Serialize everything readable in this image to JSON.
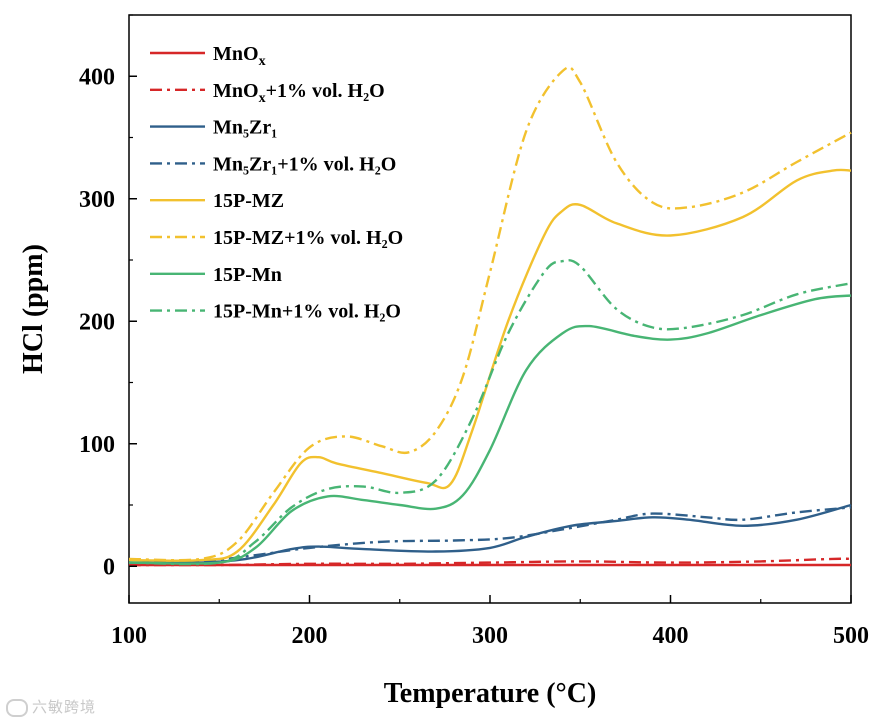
{
  "chart_data": {
    "type": "line",
    "title": "",
    "xlabel": "Temperature (°C)",
    "ylabel": "HCl (ppm)",
    "xlim": [
      100,
      500
    ],
    "ylim": [
      -30,
      450
    ],
    "xticks": [
      100,
      200,
      300,
      400,
      500
    ],
    "yticks": [
      0,
      100,
      200,
      300,
      400
    ],
    "grid": false,
    "legend_position": "top-left",
    "series": [
      {
        "name": "MnOx",
        "label_main": "MnO",
        "label_sub": "x",
        "label_rest": "",
        "color": "#d62728",
        "dash": "solid",
        "x": [
          100,
          200,
          300,
          400,
          500
        ],
        "y": [
          1,
          1,
          1,
          1,
          1
        ]
      },
      {
        "name": "MnOx+1% vol. H2O",
        "label_main": "MnO",
        "label_sub": "x",
        "label_rest": "+1% vol. H₂O",
        "color": "#d62728",
        "dash": "dashdot",
        "x": [
          100,
          150,
          200,
          250,
          300,
          350,
          400,
          450,
          490,
          500
        ],
        "y": [
          1,
          1,
          2,
          2,
          3,
          4,
          3,
          4,
          6,
          6
        ]
      },
      {
        "name": "Mn5Zr1",
        "label_main": "Mn₅Zr₁",
        "label_sub": "",
        "label_rest": "",
        "color": "#2f5f8a",
        "dash": "solid",
        "x": [
          100,
          140,
          165,
          190,
          205,
          230,
          270,
          300,
          320,
          345,
          370,
          390,
          410,
          440,
          470,
          500
        ],
        "y": [
          3,
          3,
          6,
          14,
          16,
          14,
          12,
          15,
          24,
          33,
          37,
          40,
          38,
          33,
          38,
          50
        ]
      },
      {
        "name": "Mn5Zr1+1% vol. H2O",
        "label_main": "Mn₅Zr₁",
        "label_sub": "",
        "label_rest": "+1% vol. H₂O",
        "color": "#2f5f8a",
        "dash": "dashdot",
        "x": [
          100,
          140,
          170,
          200,
          240,
          280,
          310,
          340,
          370,
          390,
          420,
          440,
          470,
          500
        ],
        "y": [
          3,
          4,
          9,
          15,
          20,
          21,
          23,
          30,
          38,
          43,
          40,
          38,
          44,
          48
        ]
      },
      {
        "name": "15P-MZ",
        "label_main": "15P-MZ",
        "label_sub": "",
        "label_rest": "",
        "color": "#f2c12e",
        "dash": "solid",
        "x": [
          100,
          140,
          160,
          180,
          195,
          205,
          215,
          240,
          265,
          278,
          290,
          310,
          330,
          340,
          350,
          370,
          400,
          440,
          470,
          490,
          500
        ],
        "y": [
          5,
          5,
          12,
          50,
          84,
          89,
          84,
          76,
          68,
          67,
          110,
          200,
          270,
          290,
          295,
          280,
          270,
          285,
          315,
          323,
          323
        ]
      },
      {
        "name": "15P-MZ+1% vol. H2O",
        "label_main": "15P-MZ",
        "label_sub": "",
        "label_rest": "+1% vol. H₂O",
        "color": "#f2c12e",
        "dash": "dashdot",
        "x": [
          100,
          140,
          160,
          180,
          200,
          220,
          240,
          255,
          270,
          285,
          300,
          320,
          340,
          350,
          370,
          390,
          410,
          440,
          470,
          500
        ],
        "y": [
          6,
          6,
          20,
          60,
          97,
          106,
          98,
          93,
          110,
          155,
          240,
          355,
          404,
          395,
          330,
          297,
          293,
          305,
          330,
          354
        ]
      },
      {
        "name": "15P-Mn",
        "label_main": "15P-Mn",
        "label_sub": "",
        "label_rest": "",
        "color": "#48b574",
        "dash": "solid",
        "x": [
          100,
          150,
          170,
          190,
          210,
          230,
          250,
          270,
          285,
          300,
          320,
          340,
          355,
          380,
          400,
          420,
          450,
          480,
          500
        ],
        "y": [
          3,
          3,
          15,
          45,
          57,
          54,
          50,
          47,
          58,
          95,
          160,
          190,
          196,
          188,
          185,
          190,
          205,
          218,
          221
        ]
      },
      {
        "name": "15P-Mn+1% vol. H2O",
        "label_main": "15P-Mn",
        "label_sub": "",
        "label_rest": "+1% vol. H₂O",
        "color": "#48b574",
        "dash": "dashdot",
        "x": [
          100,
          150,
          170,
          190,
          210,
          230,
          250,
          270,
          290,
          310,
          330,
          340,
          350,
          370,
          390,
          410,
          440,
          470,
          500
        ],
        "y": [
          3,
          3,
          20,
          48,
          63,
          65,
          60,
          70,
          120,
          190,
          240,
          249,
          245,
          210,
          195,
          195,
          205,
          222,
          231
        ]
      }
    ]
  },
  "watermark": "六敏跨境"
}
